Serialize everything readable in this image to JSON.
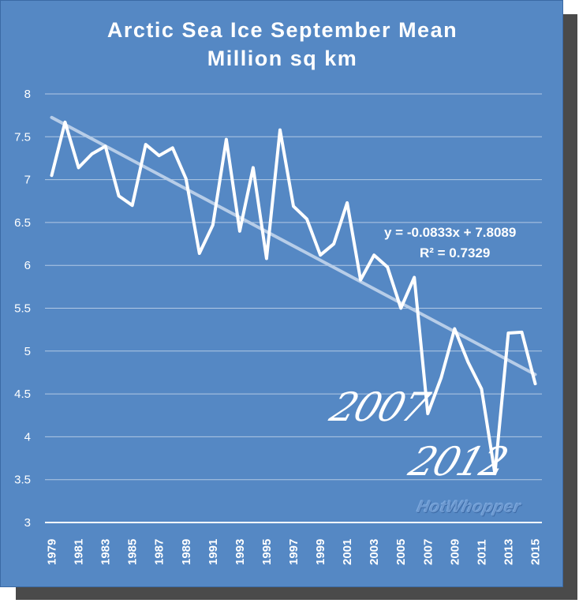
{
  "chart_data": {
    "type": "line",
    "title": "Arctic Sea Ice September Mean",
    "subtitle": "Million sq km",
    "xlabel": "",
    "ylabel": "",
    "ylim": [
      3,
      8
    ],
    "y_ticks": [
      "3",
      "3.5",
      "4",
      "4.5",
      "5",
      "5.5",
      "6",
      "6.5",
      "7",
      "7.5",
      "8"
    ],
    "x_ticks": [
      "1979",
      "1981",
      "1983",
      "1985",
      "1987",
      "1989",
      "1991",
      "1993",
      "1995",
      "1997",
      "1999",
      "2001",
      "2003",
      "2005",
      "2007",
      "2009",
      "2011",
      "2013",
      "2015"
    ],
    "years": [
      1979,
      1980,
      1981,
      1982,
      1983,
      1984,
      1985,
      1986,
      1987,
      1988,
      1989,
      1990,
      1991,
      1992,
      1993,
      1994,
      1995,
      1996,
      1997,
      1998,
      1999,
      2000,
      2001,
      2002,
      2003,
      2004,
      2005,
      2006,
      2007,
      2008,
      2009,
      2010,
      2011,
      2012,
      2013,
      2014,
      2015
    ],
    "series": [
      {
        "name": "September Mean",
        "values": [
          7.05,
          7.67,
          7.14,
          7.3,
          7.39,
          6.81,
          6.7,
          7.41,
          7.28,
          7.37,
          7.01,
          6.14,
          6.47,
          7.47,
          6.4,
          7.14,
          6.08,
          7.58,
          6.69,
          6.54,
          6.12,
          6.25,
          6.73,
          5.83,
          6.12,
          5.98,
          5.5,
          5.86,
          4.27,
          4.69,
          5.26,
          4.87,
          4.56,
          3.57,
          5.21,
          5.22,
          4.62
        ]
      }
    ],
    "trendline": {
      "equation": "y = -0.0833x + 7.8089",
      "r_squared": "R² = 0.7329",
      "slope": -0.0833,
      "intercept": 7.8089
    },
    "annotations": [
      "2007",
      "2012"
    ],
    "watermark": "HotWhopper",
    "grid": true,
    "colors": {
      "background": "#5588c4",
      "line": "#ffffff",
      "trend": "#b7cde8",
      "grid": "#ffffff",
      "axis_text": "#ffffff"
    }
  }
}
